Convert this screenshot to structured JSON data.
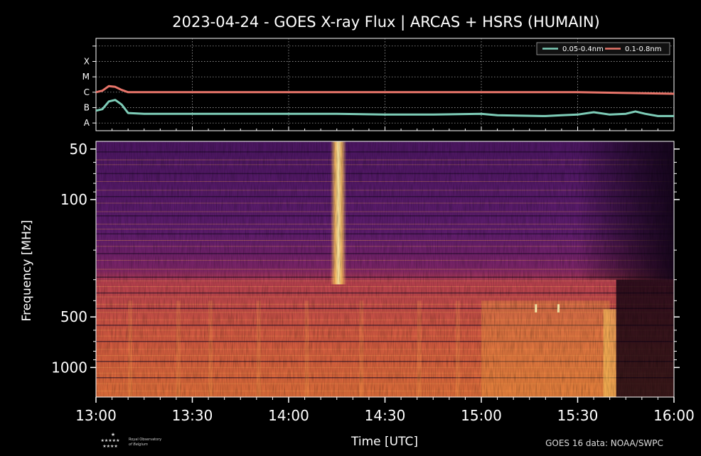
{
  "title": "2023-04-24 - GOES X-ray Flux | ARCAS + HSRS (HUMAIN)",
  "credit": "GOES 16 data: NOAA/SWPC",
  "logo": {
    "line1": "Royal Observatory",
    "line2": "of Belgium"
  },
  "colors": {
    "short": "#7ecdb8",
    "long": "#e8756a"
  },
  "chart_data": [
    {
      "type": "line",
      "title": "2023-04-24 - GOES X-ray Flux | ARCAS + HSRS (HUMAIN)",
      "x_range": [
        "13:00",
        "16:00"
      ],
      "x_ticks": [
        "13:00",
        "13:30",
        "14:00",
        "14:30",
        "15:00",
        "15:30",
        "16:00"
      ],
      "y_scale": "log",
      "y_class_labels": [
        "A",
        "B",
        "C",
        "M",
        "X"
      ],
      "grid": true,
      "legend_position": "top-right",
      "series": [
        {
          "name": "0.05-0.4nm",
          "color": "#7ecdb8",
          "x": [
            "13:00",
            "13:02",
            "13:04",
            "13:06",
            "13:08",
            "13:10",
            "13:15",
            "13:30",
            "13:45",
            "14:00",
            "14:15",
            "14:30",
            "14:45",
            "15:00",
            "15:05",
            "15:20",
            "15:25",
            "15:30",
            "15:35",
            "15:40",
            "15:45",
            "15:48",
            "15:51",
            "15:55",
            "16:00"
          ],
          "y_class": [
            1.8,
            1.9,
            2.4,
            2.5,
            2.2,
            1.65,
            1.6,
            1.6,
            1.6,
            1.6,
            1.6,
            1.55,
            1.55,
            1.6,
            1.5,
            1.45,
            1.5,
            1.55,
            1.7,
            1.55,
            1.6,
            1.75,
            1.6,
            1.45,
            1.45
          ]
        },
        {
          "name": "0.1-0.8nm",
          "color": "#e8756a",
          "x": [
            "13:00",
            "13:02",
            "13:04",
            "13:06",
            "13:08",
            "13:10",
            "13:30",
            "14:00",
            "14:30",
            "15:00",
            "15:30",
            "15:45",
            "16:00"
          ],
          "y_class": [
            3.0,
            3.1,
            3.4,
            3.35,
            3.15,
            3.0,
            3.0,
            3.0,
            3.0,
            3.0,
            3.0,
            2.95,
            2.9
          ]
        }
      ]
    },
    {
      "type": "heatmap",
      "xlabel": "Time [UTC]",
      "ylabel": "Frequency [MHz]",
      "x_range": [
        "13:00",
        "16:00"
      ],
      "x_ticks": [
        "13:00",
        "13:30",
        "14:00",
        "14:30",
        "15:00",
        "15:30",
        "16:00"
      ],
      "y_scale": "log",
      "y_ticks": [
        50,
        100,
        500,
        1000
      ],
      "y_range": [
        45,
        1500
      ],
      "colormap": "inferno",
      "features": [
        {
          "kind": "broadband-burst",
          "time_start": "14:13",
          "time_end": "14:18",
          "freq_low": 45,
          "freq_high": 320
        },
        {
          "kind": "enhanced-emission",
          "time_start": "15:00",
          "time_end": "15:40",
          "freq_low": 400,
          "freq_high": 1500
        },
        {
          "kind": "spikes",
          "times": [
            "15:17",
            "15:24"
          ],
          "freq_low": 420,
          "freq_high": 470
        },
        {
          "kind": "low-signal",
          "time_start": "15:42",
          "time_end": "16:00",
          "freq_low": 300,
          "freq_high": 1500
        }
      ]
    }
  ]
}
